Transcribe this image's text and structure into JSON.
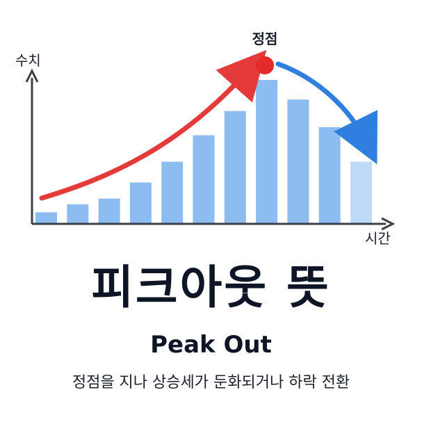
{
  "chart_data": {
    "type": "bar",
    "values": [
      10,
      17,
      22,
      36,
      54,
      77,
      98,
      125,
      108,
      84,
      54
    ],
    "ylabel": "수치",
    "xlabel": "시간",
    "annotation": "정점",
    "peak_index": 7,
    "trend_up_color": "#e53a3a",
    "trend_down_color": "#2f7fe0",
    "bar_color": "#8dbcf1",
    "last_bar_color": "#bfd9f8",
    "peak_dot_color": "#e42b2b",
    "axis_color": "#3a3f48",
    "grid": false
  },
  "title": "피크아웃 뜻",
  "subtitle": "Peak Out",
  "description": "정점을 지나 상승세가 둔화되거나 하락 전환"
}
